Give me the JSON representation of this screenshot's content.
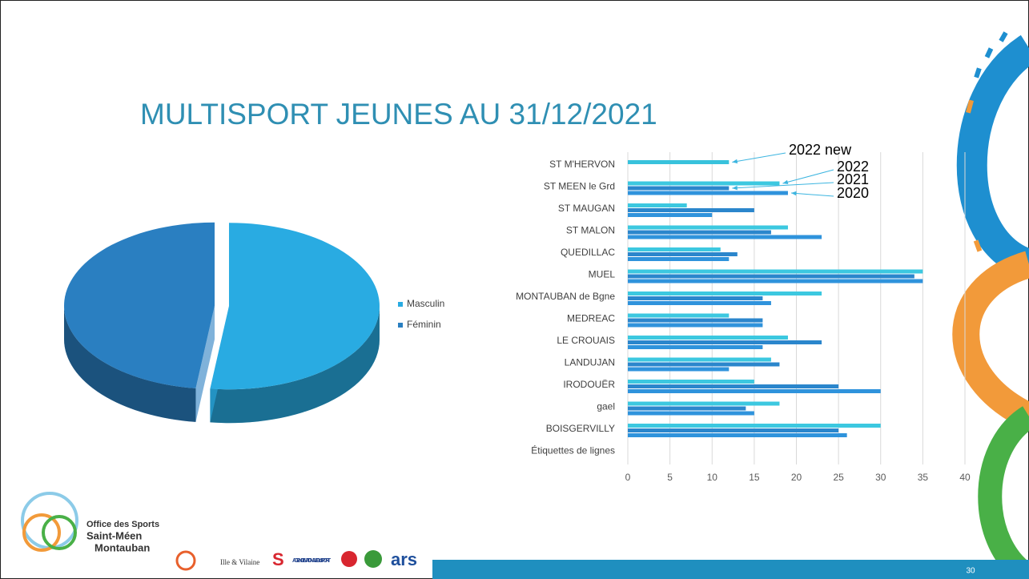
{
  "title": "MULTISPORT JEUNES AU 31/12/2021",
  "slide_number": "30",
  "logo": {
    "lines": [
      "Office des Sports",
      "Saint-Méen",
      "Montauban"
    ]
  },
  "partners": [
    "Ille & Vilaine",
    "AGENCE NATIONALE DU SPORT",
    "ars"
  ],
  "chart_data": [
    {
      "type": "pie",
      "categories": [
        "Masculin",
        "Féminin"
      ],
      "values": [
        52,
        48
      ],
      "colors": [
        "#29abe2",
        "#2a7fc1"
      ],
      "legend": "right"
    },
    {
      "type": "hbar",
      "categories": [
        "ST M'HERVON",
        "ST MEEN le Grd",
        "ST MAUGAN",
        "ST MALON",
        "QUEDILLAC",
        "MUEL",
        "MONTAUBAN de Bgne",
        "MEDREAC",
        "LE CROUAIS",
        "LANDUJAN",
        "IRODOUËR",
        "gael",
        "BOISGERVILLY",
        "Étiquettes de lignes"
      ],
      "series": [
        {
          "name": "2022 new",
          "color": "#38c2dc",
          "values": [
            12,
            null,
            null,
            null,
            null,
            null,
            null,
            null,
            null,
            null,
            null,
            null,
            null,
            null
          ]
        },
        {
          "name": "2022",
          "color": "#3cc8e0",
          "values": [
            null,
            18,
            7,
            19,
            11,
            35,
            23,
            12,
            19,
            17,
            15,
            18,
            30,
            null
          ]
        },
        {
          "name": "2021",
          "color": "#2b86cc",
          "values": [
            null,
            12,
            15,
            17,
            13,
            34,
            16,
            16,
            23,
            18,
            25,
            14,
            25,
            null
          ]
        },
        {
          "name": "2020",
          "color": "#2f93dc",
          "values": [
            null,
            19,
            10,
            23,
            12,
            35,
            17,
            16,
            16,
            12,
            30,
            15,
            26,
            null
          ]
        }
      ],
      "xlim": [
        0,
        40
      ],
      "xticks": [
        0,
        5,
        10,
        15,
        20,
        25,
        30,
        35,
        40
      ],
      "grid": true
    }
  ]
}
